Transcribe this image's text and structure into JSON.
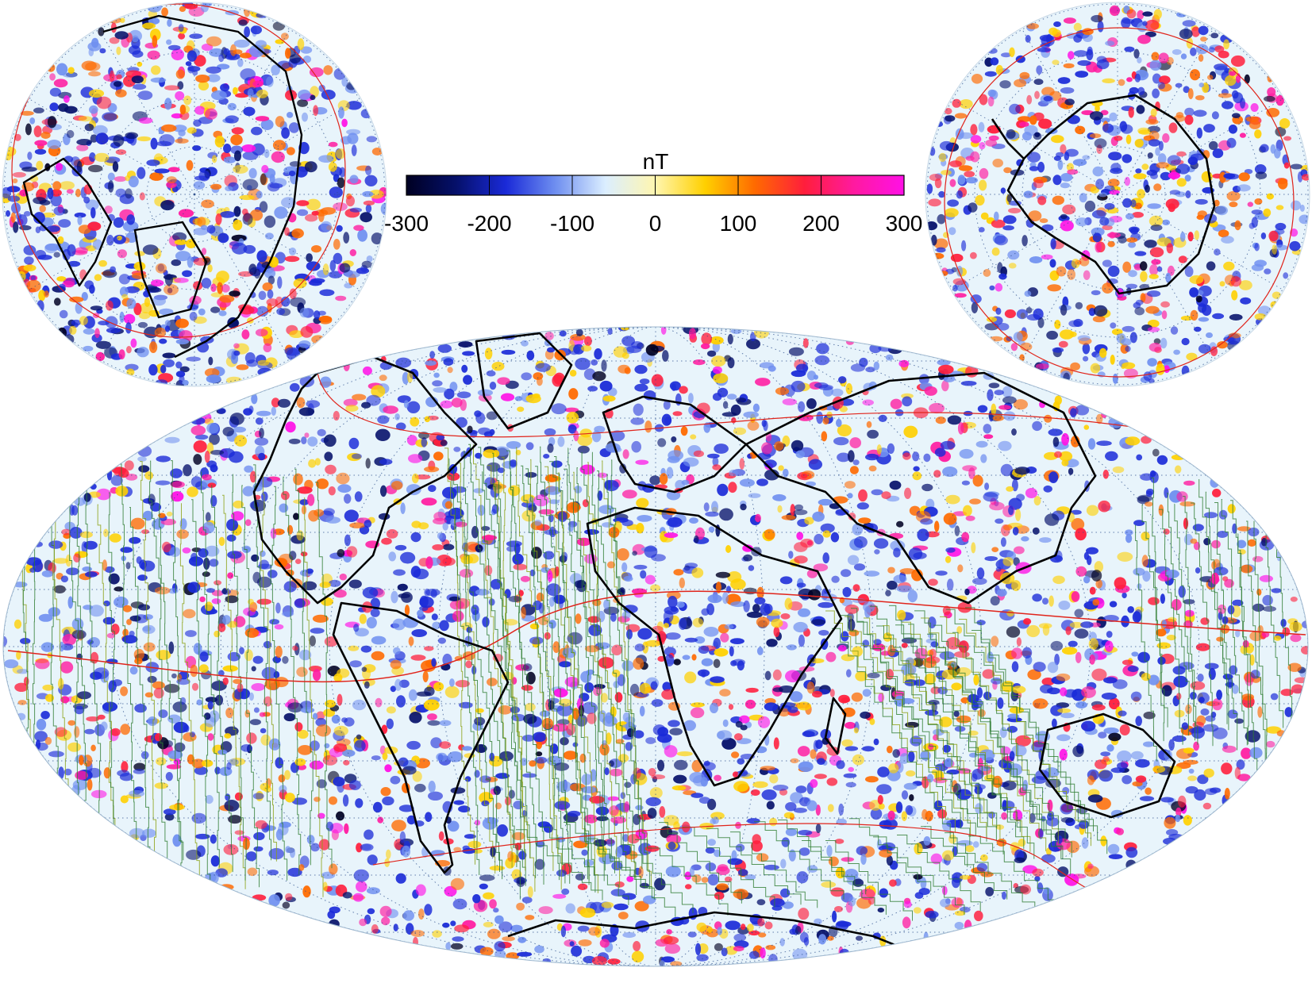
{
  "colorbar": {
    "unit": "nT",
    "min": -300,
    "max": 300,
    "tick_values": [
      -300,
      -200,
      -100,
      0,
      100,
      200,
      300
    ],
    "tick_labels": [
      "-300",
      "-200",
      "-100",
      "0",
      "100",
      "200",
      "300"
    ],
    "colormap": [
      "#000022",
      "#05106a",
      "#1a2ad8",
      "#6f8ff0",
      "#dbeeff",
      "#fff6b0",
      "#ffd000",
      "#ff6a00",
      "#ff1e3c",
      "#ff1aa0",
      "#ff10e6"
    ]
  },
  "maps": {
    "main": "global-mollweide-anomaly",
    "inset_left": "north-polar-stereographic",
    "inset_right": "south-polar-stereographic"
  },
  "colors": {
    "coastline": "#000000",
    "isochron": "#2e7d32",
    "isochron_alt": "#8aa010",
    "graticule": "#2a4c8a",
    "reference_line": "#e0241b"
  }
}
